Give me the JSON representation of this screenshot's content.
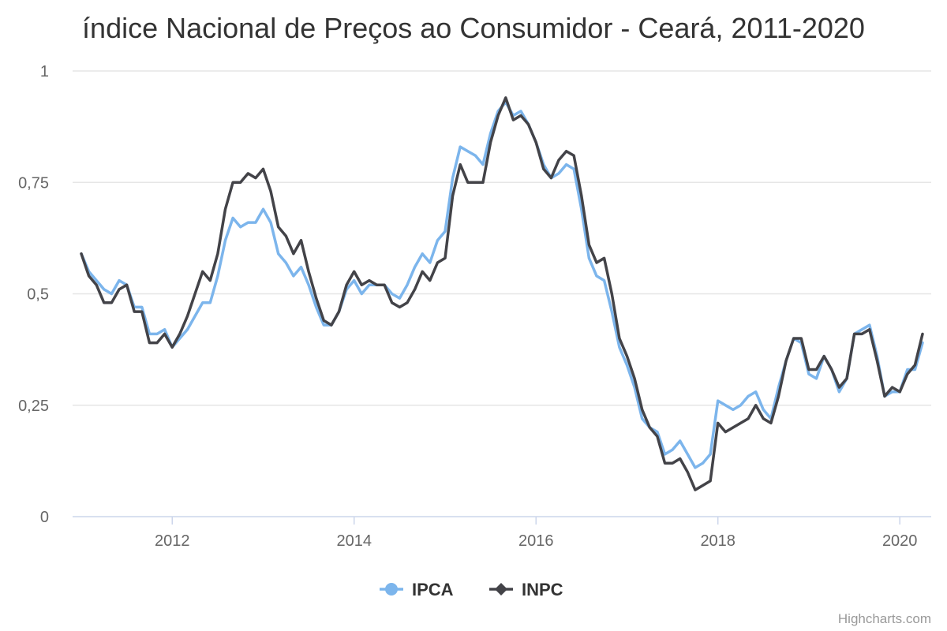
{
  "chart_data": {
    "type": "line",
    "title": "índice Nacional de Preços ao Consumidor - Ceará, 2011-2020",
    "xlabel": "",
    "ylabel": "",
    "xlim": [
      "2011-01",
      "2020-04"
    ],
    "ylim": [
      0,
      1
    ],
    "y_ticks": [
      {
        "value": 0,
        "label": "0"
      },
      {
        "value": 0.25,
        "label": "0,25"
      },
      {
        "value": 0.5,
        "label": "0,5"
      },
      {
        "value": 0.75,
        "label": "0,75"
      },
      {
        "value": 1,
        "label": "1"
      }
    ],
    "x_ticks": [
      {
        "value": "2012-01",
        "label": "2012"
      },
      {
        "value": "2014-01",
        "label": "2014"
      },
      {
        "value": "2016-01",
        "label": "2016"
      },
      {
        "value": "2018-01",
        "label": "2018"
      },
      {
        "value": "2020-01",
        "label": "2020"
      }
    ],
    "grid": true,
    "legend_position": "bottom-center",
    "start": "2011-01",
    "series": [
      {
        "name": "IPCA",
        "color": "#7cb5ec",
        "values": [
          0.59,
          0.55,
          0.53,
          0.51,
          0.5,
          0.53,
          0.52,
          0.47,
          0.47,
          0.41,
          0.41,
          0.42,
          0.38,
          0.4,
          0.42,
          0.45,
          0.48,
          0.48,
          0.54,
          0.62,
          0.67,
          0.65,
          0.66,
          0.66,
          0.69,
          0.66,
          0.59,
          0.57,
          0.54,
          0.56,
          0.52,
          0.47,
          0.43,
          0.43,
          0.46,
          0.51,
          0.53,
          0.5,
          0.52,
          0.52,
          0.52,
          0.5,
          0.49,
          0.52,
          0.56,
          0.59,
          0.57,
          0.62,
          0.64,
          0.76,
          0.83,
          0.82,
          0.81,
          0.79,
          0.86,
          0.91,
          0.93,
          0.9,
          0.91,
          0.88,
          0.84,
          0.79,
          0.76,
          0.77,
          0.79,
          0.78,
          0.69,
          0.58,
          0.54,
          0.53,
          0.46,
          0.38,
          0.34,
          0.29,
          0.22,
          0.2,
          0.19,
          0.14,
          0.15,
          0.17,
          0.14,
          0.11,
          0.12,
          0.14,
          0.26,
          0.25,
          0.24,
          0.25,
          0.27,
          0.28,
          0.24,
          0.22,
          0.29,
          0.35,
          0.4,
          0.39,
          0.32,
          0.31,
          0.36,
          0.33,
          0.28,
          0.31,
          0.41,
          0.42,
          0.43,
          0.36,
          0.27,
          0.28,
          0.28,
          0.33,
          0.33,
          0.39
        ]
      },
      {
        "name": "INPC",
        "color": "#434348",
        "values": [
          0.59,
          0.54,
          0.52,
          0.48,
          0.48,
          0.51,
          0.52,
          0.46,
          0.46,
          0.39,
          0.39,
          0.41,
          0.38,
          0.41,
          0.45,
          0.5,
          0.55,
          0.53,
          0.59,
          0.69,
          0.75,
          0.75,
          0.77,
          0.76,
          0.78,
          0.73,
          0.65,
          0.63,
          0.59,
          0.62,
          0.55,
          0.49,
          0.44,
          0.43,
          0.46,
          0.52,
          0.55,
          0.52,
          0.53,
          0.52,
          0.52,
          0.48,
          0.47,
          0.48,
          0.51,
          0.55,
          0.53,
          0.57,
          0.58,
          0.72,
          0.79,
          0.75,
          0.75,
          0.75,
          0.84,
          0.9,
          0.94,
          0.89,
          0.9,
          0.88,
          0.84,
          0.78,
          0.76,
          0.8,
          0.82,
          0.81,
          0.72,
          0.61,
          0.57,
          0.58,
          0.5,
          0.4,
          0.36,
          0.31,
          0.24,
          0.2,
          0.18,
          0.12,
          0.12,
          0.13,
          0.1,
          0.06,
          0.07,
          0.08,
          0.21,
          0.19,
          0.2,
          0.21,
          0.22,
          0.25,
          0.22,
          0.21,
          0.27,
          0.35,
          0.4,
          0.4,
          0.33,
          0.33,
          0.36,
          0.33,
          0.29,
          0.31,
          0.41,
          0.41,
          0.42,
          0.35,
          0.27,
          0.29,
          0.28,
          0.32,
          0.34,
          0.41
        ]
      }
    ]
  },
  "credits": "Highcharts.com"
}
